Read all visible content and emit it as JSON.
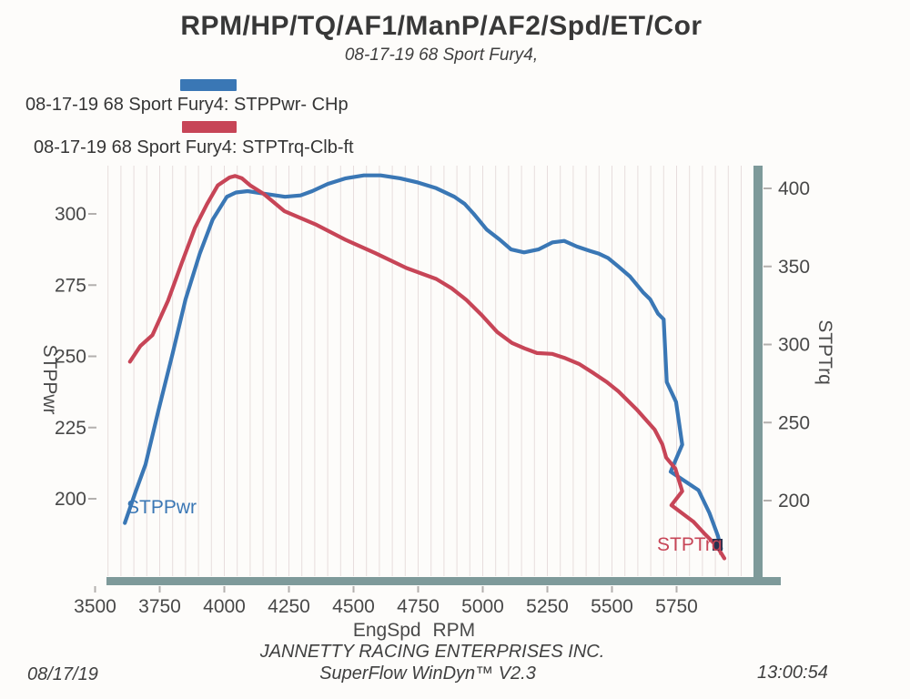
{
  "header": {
    "title": "RPM/HP/TQ/AF1/ManP/AF2/Spd/ET/Cor",
    "subtitle": "08-17-19 68 Sport Fury4,"
  },
  "legend": [
    {
      "label": "08-17-19 68 Sport Fury4: STPPwr- CHp",
      "color": "#3a77b5"
    },
    {
      "label": "08-17-19 68 Sport Fury4: STPTrq-Clb-ft",
      "color": "#c74557"
    }
  ],
  "chart_data": {
    "type": "line",
    "title": "RPM/HP/TQ/AF1/ManP/AF2/Spd/ET/Cor",
    "subtitle": "08-17-19 68 Sport Fury4,",
    "x_axis": {
      "label": "EngSpd RPM",
      "unit": "RPM",
      "ticks": [
        3500,
        3750,
        4000,
        4250,
        4500,
        4750,
        5000,
        5250,
        5500,
        5750
      ],
      "range": [
        3505,
        6045
      ]
    },
    "y_left": {
      "label": "STPPwr",
      "unit": "CHp",
      "ticks": [
        200,
        225,
        250,
        275,
        300
      ],
      "range": [
        173,
        317
      ]
    },
    "y_right": {
      "label": "STPTrq",
      "unit": "Clb-ft",
      "ticks": [
        200,
        250,
        300,
        350,
        400
      ],
      "range": [
        152,
        415
      ]
    },
    "grid": {
      "vertical_minor_step_rpm": 50,
      "horizontal": false
    },
    "legend_position": "top-left",
    "series": [
      {
        "name": "08-17-19 68 Sport Fury4: STPPwr- CHp",
        "curve_label": "STPPwr",
        "axis": "left",
        "color": "#3a77b5",
        "points": [
          [
            3615,
            191.5
          ],
          [
            3655,
            202
          ],
          [
            3695,
            212
          ],
          [
            3745,
            231
          ],
          [
            3800,
            251
          ],
          [
            3850,
            270
          ],
          [
            3905,
            286
          ],
          [
            3955,
            298
          ],
          [
            4010,
            306
          ],
          [
            4045,
            307.5
          ],
          [
            4090,
            308
          ],
          [
            4160,
            307
          ],
          [
            4235,
            306
          ],
          [
            4295,
            306.5
          ],
          [
            4340,
            308
          ],
          [
            4400,
            310.5
          ],
          [
            4470,
            312.5
          ],
          [
            4540,
            313.5
          ],
          [
            4605,
            313.5
          ],
          [
            4680,
            312.5
          ],
          [
            4750,
            311
          ],
          [
            4820,
            309
          ],
          [
            4890,
            306
          ],
          [
            4930,
            303.5
          ],
          [
            4965,
            300
          ],
          [
            5015,
            294.5
          ],
          [
            5065,
            291
          ],
          [
            5110,
            287.5
          ],
          [
            5160,
            286.5
          ],
          [
            5215,
            287.5
          ],
          [
            5270,
            290
          ],
          [
            5315,
            290.5
          ],
          [
            5365,
            288.5
          ],
          [
            5415,
            287
          ],
          [
            5450,
            286
          ],
          [
            5485,
            284.5
          ],
          [
            5525,
            281.5
          ],
          [
            5570,
            278
          ],
          [
            5620,
            272.5
          ],
          [
            5648,
            270
          ],
          [
            5678,
            265
          ],
          [
            5700,
            263
          ],
          [
            5712,
            241
          ],
          [
            5748,
            234
          ],
          [
            5772,
            219
          ],
          [
            5727,
            209.5
          ],
          [
            5835,
            203
          ],
          [
            5877,
            195
          ],
          [
            5910,
            187
          ],
          [
            5922,
            182.5
          ]
        ]
      },
      {
        "name": "08-17-19 68 Sport Fury4: STPTrq-Clb-ft",
        "curve_label": "STPTrq",
        "axis": "right",
        "color": "#c74557",
        "points": [
          [
            3635,
            289
          ],
          [
            3675,
            299
          ],
          [
            3722,
            306
          ],
          [
            3782,
            328
          ],
          [
            3835,
            352
          ],
          [
            3887,
            375
          ],
          [
            3933,
            390
          ],
          [
            3975,
            402
          ],
          [
            4020,
            407
          ],
          [
            4042,
            408
          ],
          [
            4068,
            406.5
          ],
          [
            4100,
            402
          ],
          [
            4152,
            396.5
          ],
          [
            4232,
            385.5
          ],
          [
            4352,
            377
          ],
          [
            4470,
            367
          ],
          [
            4585,
            358.5
          ],
          [
            4705,
            349
          ],
          [
            4820,
            342
          ],
          [
            4880,
            336
          ],
          [
            4937,
            328.5
          ],
          [
            4998,
            318.5
          ],
          [
            5056,
            308
          ],
          [
            5113,
            301
          ],
          [
            5162,
            297.5
          ],
          [
            5210,
            294.5
          ],
          [
            5268,
            294
          ],
          [
            5315,
            291.5
          ],
          [
            5373,
            287.5
          ],
          [
            5430,
            281.5
          ],
          [
            5480,
            276
          ],
          [
            5525,
            270
          ],
          [
            5595,
            258.5
          ],
          [
            5665,
            245.5
          ],
          [
            5695,
            236
          ],
          [
            5710,
            227.5
          ],
          [
            5745,
            220.5
          ],
          [
            5772,
            206
          ],
          [
            5730,
            197
          ],
          [
            5815,
            186.5
          ],
          [
            5860,
            178.5
          ],
          [
            5905,
            171
          ],
          [
            5935,
            163
          ]
        ]
      }
    ]
  },
  "footer": {
    "company": "JANNETTY RACING ENTERPRISES INC.",
    "software": "SuperFlow WinDyn™ V2.3",
    "date": "08/17/19",
    "time": "13:00:54"
  },
  "colors": {
    "power_curve": "#3a77b5",
    "torque_curve": "#c74557",
    "frame_shadow": "#7e9a9a",
    "grid_line": "#e7dddd",
    "tick_mark": "#b3b0ae",
    "tick_text": "#484848",
    "end_marker": "#27314f",
    "text_dark": "#383838"
  }
}
